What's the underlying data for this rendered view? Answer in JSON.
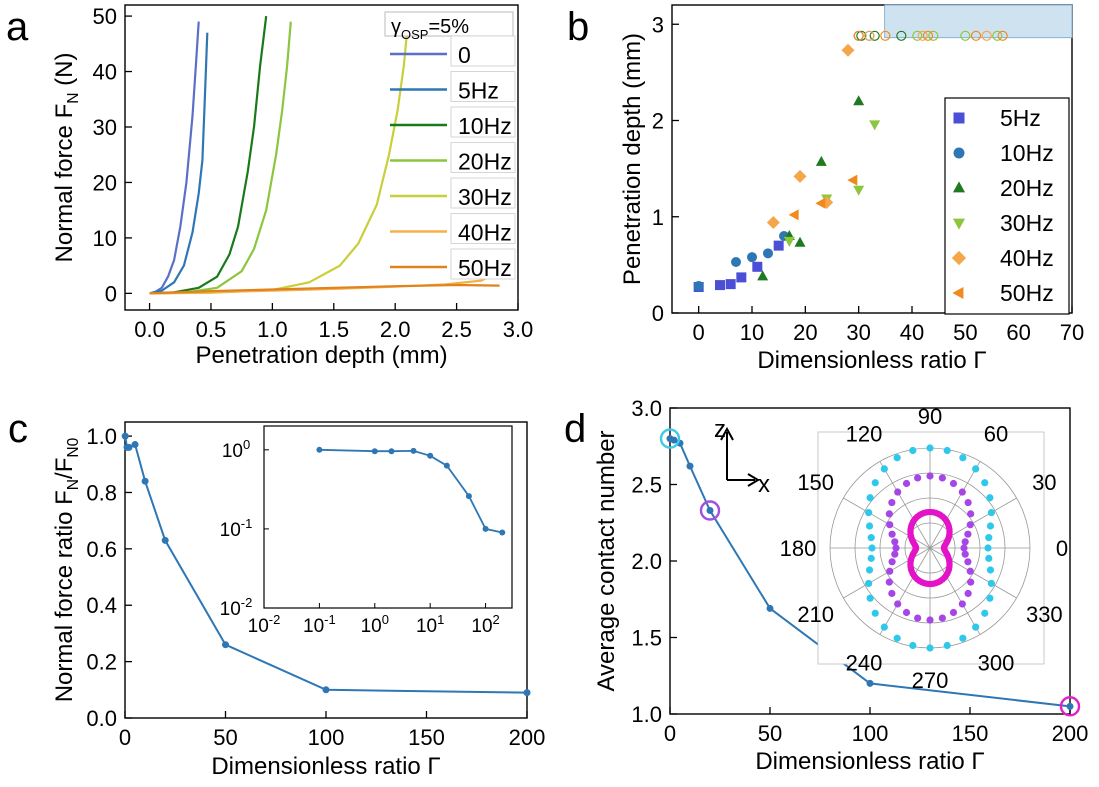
{
  "chart_data": [
    {
      "panel": "a",
      "type": "line",
      "xlabel": "Penetration depth (mm)",
      "ylabel": "Normal force F",
      "ylabel_sub": "N",
      "ylabel_unit": " (N)",
      "xlim": [
        -0.2,
        3.0
      ],
      "ylim": [
        -3,
        52
      ],
      "xticks": [
        0.0,
        0.5,
        1.0,
        1.5,
        2.0,
        2.5,
        3.0
      ],
      "yticks": [
        0,
        10,
        20,
        30,
        40,
        50
      ],
      "legend_title": "γ",
      "legend_title_sub": "OSP",
      "legend_title_rest": "=5%",
      "legend_position": "top-right",
      "series": [
        {
          "name": "0",
          "color": "#5b6fc7",
          "points": [
            [
              0.0,
              0
            ],
            [
              0.05,
              0.3
            ],
            [
              0.1,
              1
            ],
            [
              0.15,
              3
            ],
            [
              0.2,
              6
            ],
            [
              0.25,
              12
            ],
            [
              0.3,
              20
            ],
            [
              0.35,
              32
            ],
            [
              0.38,
              42
            ],
            [
              0.4,
              49
            ]
          ]
        },
        {
          "name": "5Hz",
          "color": "#2f77b4",
          "points": [
            [
              0.0,
              0
            ],
            [
              0.1,
              0.5
            ],
            [
              0.2,
              2
            ],
            [
              0.28,
              5
            ],
            [
              0.35,
              11
            ],
            [
              0.4,
              18
            ],
            [
              0.43,
              24
            ],
            [
              0.45,
              35
            ],
            [
              0.47,
              47
            ]
          ]
        },
        {
          "name": "10Hz",
          "color": "#1a7a1a",
          "points": [
            [
              0.0,
              0
            ],
            [
              0.2,
              0.2
            ],
            [
              0.4,
              1
            ],
            [
              0.55,
              3
            ],
            [
              0.65,
              7
            ],
            [
              0.72,
              12
            ],
            [
              0.8,
              22
            ],
            [
              0.85,
              30
            ],
            [
              0.9,
              41
            ],
            [
              0.95,
              50
            ]
          ]
        },
        {
          "name": "20Hz",
          "color": "#8cc63e",
          "points": [
            [
              0.0,
              0
            ],
            [
              0.3,
              0.2
            ],
            [
              0.55,
              1
            ],
            [
              0.75,
              4
            ],
            [
              0.85,
              8
            ],
            [
              0.95,
              15
            ],
            [
              1.03,
              25
            ],
            [
              1.08,
              33
            ],
            [
              1.12,
              41
            ],
            [
              1.15,
              49
            ]
          ]
        },
        {
          "name": "30Hz",
          "color": "#c8cf38",
          "points": [
            [
              0.0,
              0
            ],
            [
              0.5,
              0.1
            ],
            [
              1.0,
              0.6
            ],
            [
              1.3,
              2
            ],
            [
              1.55,
              5
            ],
            [
              1.7,
              9
            ],
            [
              1.85,
              16
            ],
            [
              1.95,
              25
            ],
            [
              2.02,
              33
            ],
            [
              2.07,
              41
            ],
            [
              2.1,
              48
            ]
          ]
        },
        {
          "name": "40Hz",
          "color": "#f5b04a",
          "points": [
            [
              0.0,
              0
            ],
            [
              0.5,
              0.2
            ],
            [
              1.0,
              0.5
            ],
            [
              1.5,
              0.8
            ],
            [
              2.0,
              1.2
            ],
            [
              2.4,
              1.6
            ],
            [
              2.7,
              2.3
            ],
            [
              2.85,
              4
            ],
            [
              2.87,
              5
            ]
          ]
        },
        {
          "name": "50Hz",
          "color": "#e0821e",
          "points": [
            [
              0.0,
              0
            ],
            [
              0.5,
              0.4
            ],
            [
              1.0,
              0.7
            ],
            [
              1.5,
              1
            ],
            [
              2.0,
              1.3
            ],
            [
              2.5,
              1.5
            ],
            [
              2.85,
              1.4
            ]
          ]
        }
      ]
    },
    {
      "panel": "b",
      "type": "scatter",
      "xlabel": "Dimensionless ratio Γ",
      "ylabel": "Penetration depth (mm)",
      "xlim": [
        -5,
        70
      ],
      "ylim": [
        0,
        3.2
      ],
      "xticks": [
        0,
        10,
        20,
        30,
        40,
        50,
        60,
        70
      ],
      "yticks": [
        0,
        1,
        2,
        3
      ],
      "legend_position": "right",
      "shaded_band": {
        "x": [
          30,
          70
        ],
        "y": [
          2.86,
          3.2
        ],
        "color": "#cfe2f0"
      },
      "series": [
        {
          "name": "5Hz",
          "marker": "square",
          "color": "#4b4fd6",
          "points": [
            [
              0,
              0.27
            ],
            [
              4,
              0.29
            ],
            [
              6,
              0.3
            ],
            [
              8,
              0.37
            ],
            [
              11,
              0.48
            ],
            [
              15,
              0.7
            ]
          ]
        },
        {
          "name": "10Hz",
          "marker": "circle",
          "color": "#2f77b4",
          "points": [
            [
              0,
              0.28
            ],
            [
              7,
              0.53
            ],
            [
              10,
              0.58
            ],
            [
              13,
              0.62
            ],
            [
              16,
              0.8
            ],
            [
              30,
              2.88
            ],
            [
              32,
              2.88
            ]
          ]
        },
        {
          "name": "20Hz",
          "marker": "triangle-up",
          "color": "#1f7a1f",
          "points": [
            [
              12,
              0.38
            ],
            [
              17,
              0.8
            ],
            [
              19,
              0.73
            ],
            [
              23,
              1.57
            ],
            [
              30,
              2.2
            ],
            [
              30.5,
              2.88
            ],
            [
              33,
              2.88
            ],
            [
              38,
              2.88
            ]
          ]
        },
        {
          "name": "30Hz",
          "marker": "triangle-down",
          "color": "#8cc63e",
          "points": [
            [
              17,
              0.75
            ],
            [
              24,
              1.19
            ],
            [
              30,
              1.28
            ],
            [
              33,
              1.96
            ],
            [
              41,
              2.88
            ],
            [
              44,
              2.88
            ],
            [
              50,
              2.88
            ],
            [
              56,
              2.88
            ]
          ]
        },
        {
          "name": "40Hz",
          "marker": "diamond",
          "color": "#f5a64a",
          "points": [
            [
              14,
              0.94
            ],
            [
              19,
              1.42
            ],
            [
              24,
              1.15
            ],
            [
              28,
              2.73
            ],
            [
              32,
              2.88
            ],
            [
              42,
              2.88
            ],
            [
              54,
              2.88
            ]
          ]
        },
        {
          "name": "50Hz",
          "marker": "triangle-left",
          "color": "#f08a1c",
          "points": [
            [
              18,
              1.02
            ],
            [
              23,
              1.14
            ],
            [
              29,
              1.38
            ],
            [
              30,
              2.88
            ],
            [
              35,
              2.88
            ],
            [
              43,
              2.88
            ],
            [
              52,
              2.88
            ],
            [
              57,
              2.88
            ]
          ]
        }
      ]
    },
    {
      "panel": "c",
      "type": "line",
      "xlabel": "Dimensionless ratio Γ",
      "ylabel": "Normal force ratio F",
      "ylabel_sub1": "N",
      "ylabel_mid": "/F",
      "ylabel_sub2": "N0",
      "xlim": [
        0,
        200
      ],
      "ylim": [
        0,
        1.05
      ],
      "xticks": [
        0,
        50,
        100,
        150,
        200
      ],
      "yticks": [
        0.0,
        0.2,
        0.4,
        0.6,
        0.8,
        1.0
      ],
      "color": "#2f77b4",
      "points": [
        [
          0.1,
          1.0
        ],
        [
          1,
          0.96
        ],
        [
          2,
          0.96
        ],
        [
          5,
          0.97
        ],
        [
          10,
          0.84
        ],
        [
          20,
          0.63
        ],
        [
          50,
          0.26
        ],
        [
          100,
          0.1
        ],
        [
          200,
          0.09
        ]
      ],
      "inset": {
        "type": "line",
        "xscale": "log",
        "yscale": "log",
        "xlim": [
          0.01,
          300
        ],
        "ylim": [
          0.01,
          2
        ],
        "xticks": [
          "10^-2",
          "10^-1",
          "10^0",
          "10^1",
          "10^2"
        ],
        "yticks": [
          "10^-2",
          "10^-1",
          "10^0"
        ],
        "points": [
          [
            0.1,
            1.0
          ],
          [
            1,
            0.96
          ],
          [
            2,
            0.96
          ],
          [
            5,
            0.97
          ],
          [
            10,
            0.84
          ],
          [
            20,
            0.63
          ],
          [
            50,
            0.26
          ],
          [
            100,
            0.1
          ],
          [
            200,
            0.09
          ]
        ]
      }
    },
    {
      "panel": "d",
      "type": "line",
      "xlabel": "Dimensionless ratio Γ",
      "ylabel": "Average contact number",
      "xlim": [
        0,
        200
      ],
      "ylim": [
        1.0,
        3.0
      ],
      "xticks": [
        0,
        50,
        100,
        150,
        200
      ],
      "yticks": [
        1.0,
        1.5,
        2.0,
        2.5,
        3.0
      ],
      "color": "#2f77b4",
      "points": [
        [
          0,
          2.8
        ],
        [
          2,
          2.79
        ],
        [
          5,
          2.77
        ],
        [
          10,
          2.62
        ],
        [
          20,
          2.33
        ],
        [
          50,
          1.69
        ],
        [
          100,
          1.2
        ],
        [
          200,
          1.05
        ]
      ],
      "highlight_circles": [
        {
          "x": 0,
          "y": 2.8,
          "color": "#3ec9e6"
        },
        {
          "x": 20,
          "y": 2.33,
          "color": "#a34fe0"
        },
        {
          "x": 200,
          "y": 1.05,
          "color": "#e020c8"
        }
      ],
      "axis_labels": {
        "z": "z",
        "x": "x"
      },
      "inset": {
        "type": "polar",
        "angle_labels": [
          "0",
          "30",
          "60",
          "90",
          "120",
          "150",
          "180",
          "210",
          "240",
          "270",
          "300",
          "330"
        ],
        "series": [
          {
            "color": "#2ec8ea",
            "shape": [
              1.0,
              0.58
            ]
          },
          {
            "color": "#a646e6",
            "shape": [
              0.72,
              0.34
            ]
          },
          {
            "color": "#e314c8",
            "shape": [
              0.36,
              0.14
            ]
          }
        ]
      }
    }
  ],
  "panel_labels": {
    "a": "a",
    "b": "b",
    "c": "c",
    "d": "d"
  }
}
